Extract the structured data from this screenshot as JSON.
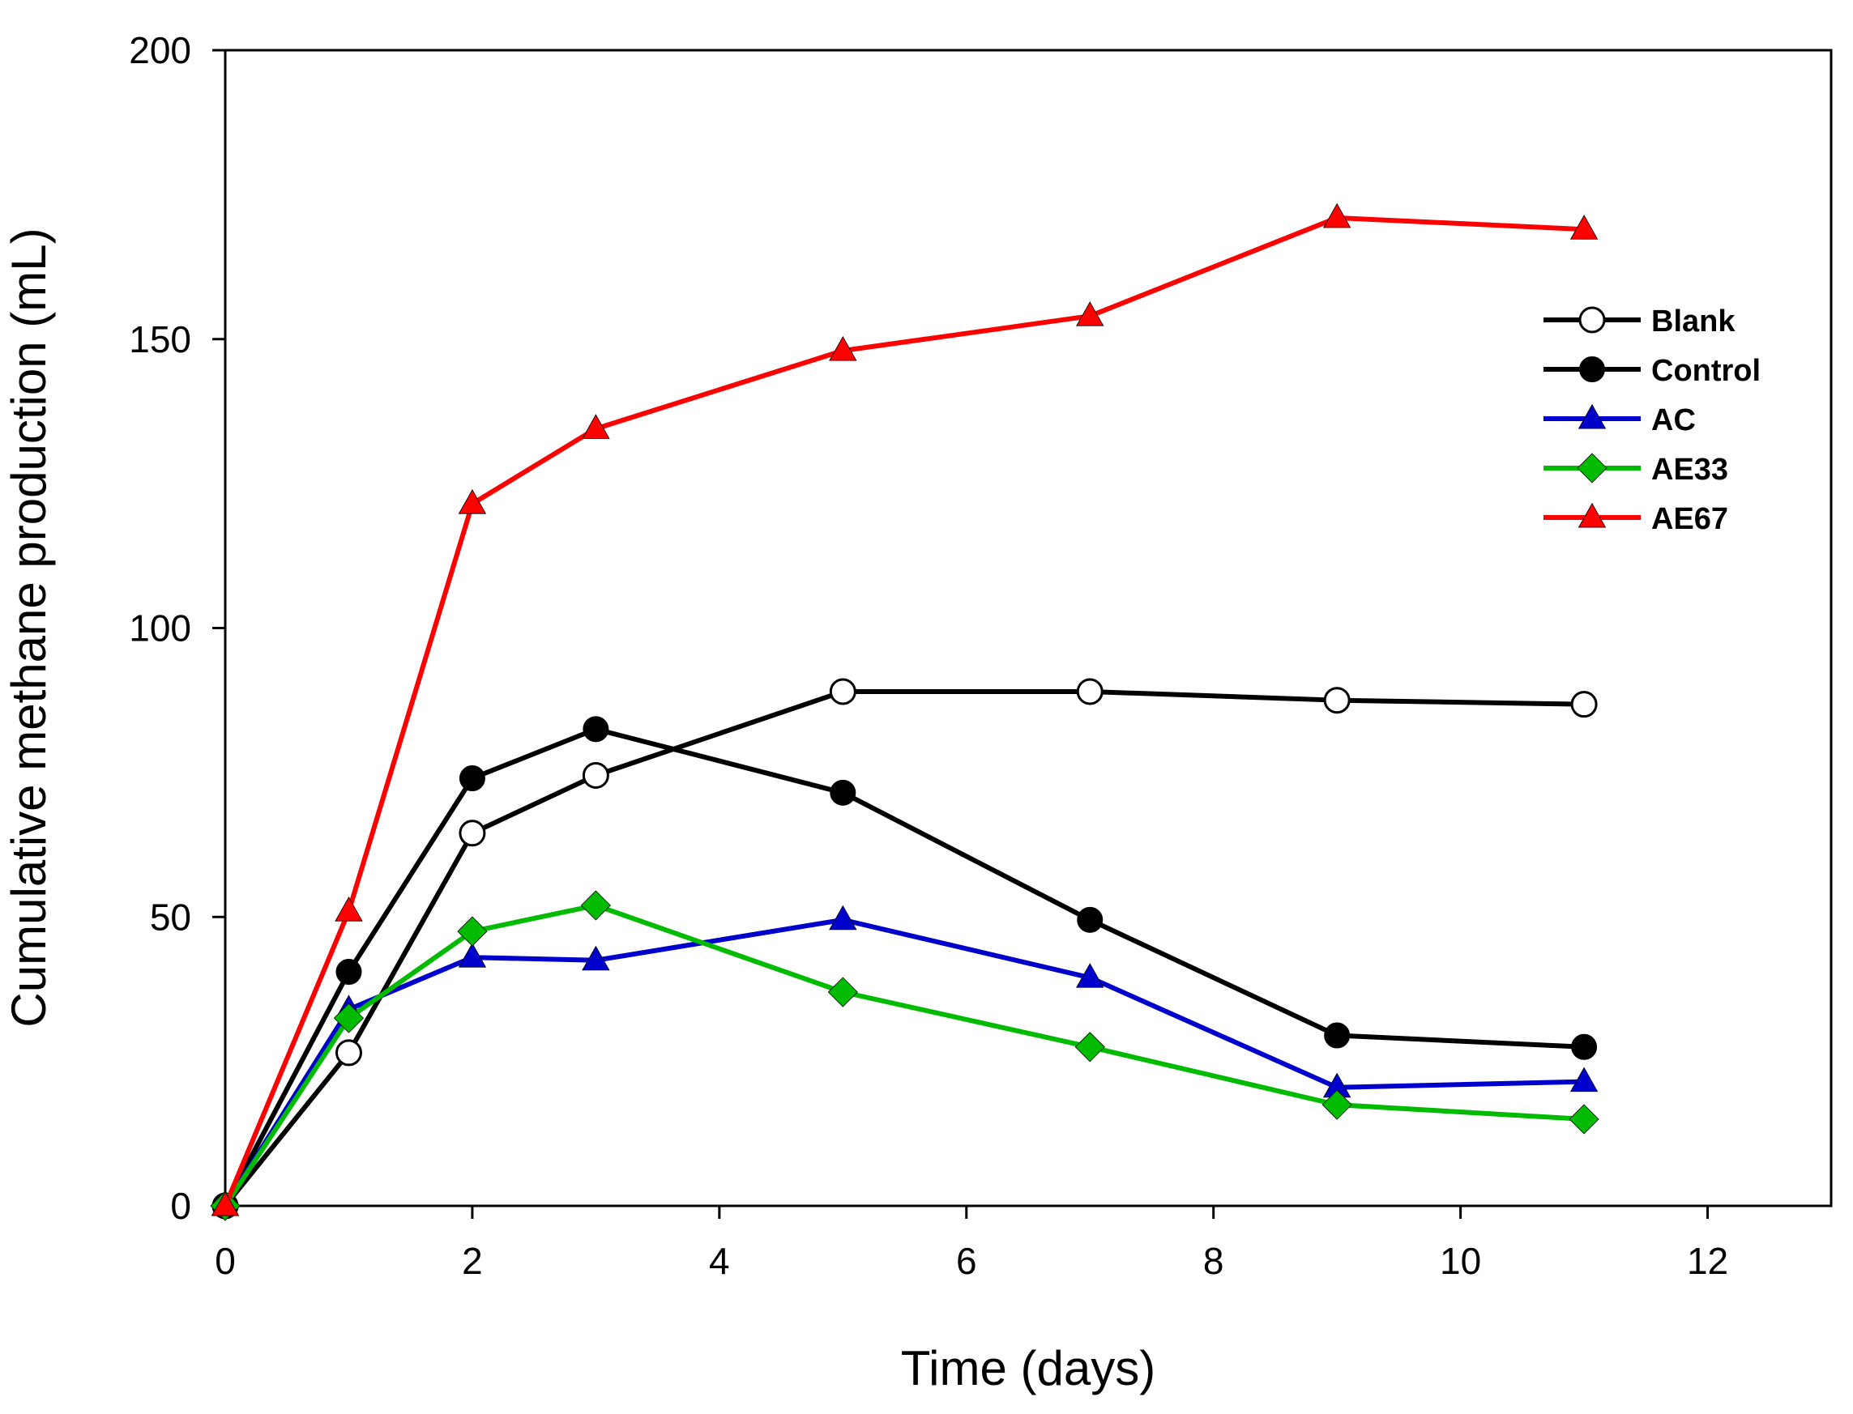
{
  "chart_data": {
    "type": "line",
    "title": "",
    "xlabel": "Time (days)",
    "ylabel": "Cumulative methane production (mL)",
    "xlim": [
      0,
      13
    ],
    "ylim": [
      0,
      200
    ],
    "xticks": [
      0,
      2,
      4,
      6,
      8,
      10,
      12
    ],
    "yticks": [
      0,
      50,
      100,
      150,
      200
    ],
    "xtick_labels": [
      "0",
      "2",
      "4",
      "6",
      "8",
      "10",
      "12"
    ],
    "ytick_labels": [
      "0",
      "50",
      "100",
      "150",
      "200"
    ],
    "legend_position": "top-right",
    "x": [
      0,
      1,
      2,
      3,
      5,
      7,
      9,
      11
    ],
    "series": [
      {
        "name": "Blank",
        "color": "#000000",
        "marker": "circle-open",
        "values": [
          0,
          26.5,
          64.5,
          74.5,
          89,
          89,
          87.5,
          86.8
        ]
      },
      {
        "name": "Control",
        "color": "#000000",
        "marker": "circle-filled",
        "values": [
          0,
          40.5,
          74,
          82.5,
          71.5,
          49.5,
          29.5,
          27.5
        ]
      },
      {
        "name": "AC",
        "color": "#0000cc",
        "marker": "triangle",
        "values": [
          0,
          34,
          43,
          42.5,
          49.5,
          39.5,
          20.5,
          21.5
        ]
      },
      {
        "name": "AE33",
        "color": "#00bb00",
        "marker": "diamond",
        "values": [
          0,
          32.5,
          47.5,
          52,
          37,
          27.5,
          17.5,
          15
        ]
      },
      {
        "name": "AE67",
        "color": "#ff0000",
        "marker": "triangle",
        "values": [
          0,
          51,
          121.5,
          134.5,
          148,
          154,
          171,
          169
        ]
      }
    ]
  }
}
